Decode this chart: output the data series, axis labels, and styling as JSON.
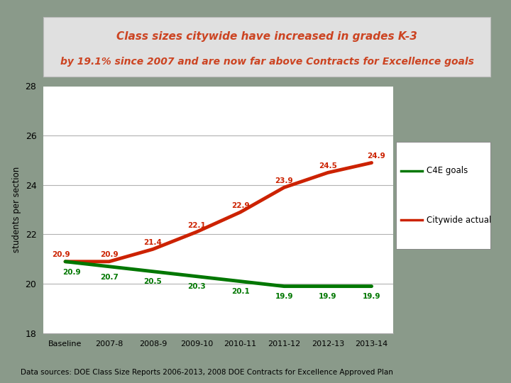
{
  "title_line1": "Class sizes citywide have increased in grades K-3",
  "title_line2": "by 19.1% since 2007 and are now far above Contracts for Excellence goals",
  "xlabel_categories": [
    "Baseline",
    "2007-8",
    "2008-9",
    "2009-10",
    "2010-11",
    "2011-12",
    "2012-13",
    "2013-14"
  ],
  "ylabel": "students per section",
  "c4e_values": [
    20.9,
    20.7,
    20.5,
    20.3,
    20.1,
    19.9,
    19.9,
    19.9
  ],
  "citywide_values": [
    20.9,
    20.9,
    21.4,
    22.1,
    22.9,
    23.9,
    24.5,
    24.9
  ],
  "c4e_labels": [
    "20.9",
    "20.7",
    "20.5",
    "20.3",
    "20.1",
    "19.9",
    "19.9",
    "19.9"
  ],
  "citywide_labels": [
    "20.9",
    "20.9",
    "21.4",
    "22.1",
    "22.9",
    "23.9",
    "24.5",
    "24.9"
  ],
  "c4e_color": "#007700",
  "citywide_color": "#cc2200",
  "ylim": [
    18,
    28
  ],
  "yticks": [
    18,
    20,
    22,
    24,
    26,
    28
  ],
  "background_outer": "#8a9a8a",
  "background_chart": "#ffffff",
  "title_bg": "#e0e0e0",
  "title_color": "#cc4422",
  "footer_text": "Data sources: DOE Class Size Reports 2006-2013, 2008 DOE Contracts for Excellence Approved Plan",
  "legend_c4e": "C4E goals",
  "legend_citywide": "Citywide actual"
}
